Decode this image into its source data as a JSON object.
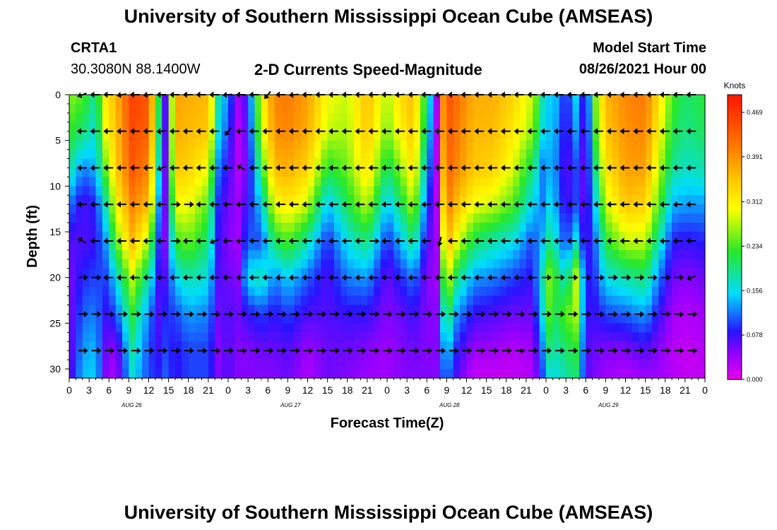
{
  "header": {
    "title": "University of Southern Mississippi Ocean Cube (AMSEAS)",
    "footer_title": "University of Southern Mississippi Ocean Cube (AMSEAS)",
    "station": "CRTA1",
    "coords": "30.3080N  88.1400W",
    "plot_title": "2-D Currents Speed-Magnitude",
    "model_start_label": "Model Start Time",
    "model_start_value": "08/26/2021 Hour 00"
  },
  "colorbar": {
    "unit_label": "Knots",
    "ticks": [
      "0.469",
      "0.391",
      "0.312",
      "0.234",
      "0.156",
      "0.078",
      "0.000"
    ],
    "min": 0.0,
    "max": 0.5
  },
  "chart_data": {
    "type": "heatmap",
    "title": "2-D Currents Speed-Magnitude",
    "xlabel": "Forecast Time(Z)",
    "ylabel": "Depth (ft)",
    "x_tick_labels": [
      "0",
      "3",
      "6",
      "9",
      "12",
      "15",
      "18",
      "21",
      "0",
      "3",
      "6",
      "9",
      "12",
      "15",
      "18",
      "21",
      "0",
      "3",
      "6",
      "9",
      "12",
      "15",
      "18",
      "21",
      "0",
      "3",
      "6",
      "9",
      "12",
      "15",
      "18",
      "21",
      "0"
    ],
    "x_hours": [
      0,
      3,
      6,
      9,
      12,
      15,
      18,
      21,
      24,
      27,
      30,
      33,
      36,
      39,
      42,
      45,
      48,
      51,
      54,
      57,
      60,
      63,
      66,
      69,
      72,
      75,
      78,
      81,
      84,
      87,
      90,
      93,
      96
    ],
    "day_labels": [
      {
        "label": "AUG 26",
        "hour": 9
      },
      {
        "label": "AUG 27",
        "hour": 33
      },
      {
        "label": "AUG 28",
        "hour": 57
      },
      {
        "label": "AUG 29",
        "hour": 81
      }
    ],
    "xlim": [
      0,
      96
    ],
    "y_ticks": [
      0,
      5,
      10,
      15,
      20,
      25,
      30
    ],
    "ylim": [
      0,
      31
    ],
    "colorbar_range": [
      0.0,
      0.5
    ],
    "units": "Knots",
    "time_nodes": [
      0,
      2,
      4,
      5.5,
      7,
      9.5,
      12,
      13.5,
      14.5,
      16,
      18,
      21,
      22.5,
      24,
      25.5,
      27,
      29,
      31,
      33,
      36,
      39,
      42,
      45,
      48,
      50,
      52,
      54,
      55.5,
      56,
      57,
      58.5,
      61,
      64,
      67,
      70,
      71.5,
      72,
      73.5,
      75,
      76.5,
      78,
      79.5,
      81,
      84,
      87,
      89,
      91,
      93,
      96
    ],
    "depth_nodes": [
      0,
      4,
      8,
      12,
      16,
      20,
      24,
      28,
      31
    ],
    "speed_grid": [
      [
        0.26,
        0.23,
        0.19,
        0.12,
        0.07,
        0.05,
        0.05,
        0.05,
        0.06
      ],
      [
        0.24,
        0.2,
        0.12,
        0.07,
        0.07,
        0.09,
        0.11,
        0.13,
        0.14
      ],
      [
        0.18,
        0.16,
        0.14,
        0.09,
        0.08,
        0.1,
        0.12,
        0.14,
        0.15
      ],
      [
        0.32,
        0.3,
        0.25,
        0.18,
        0.13,
        0.1,
        0.08,
        0.06,
        0.05
      ],
      [
        0.36,
        0.35,
        0.34,
        0.3,
        0.24,
        0.15,
        0.1,
        0.04,
        0.03
      ],
      [
        0.46,
        0.45,
        0.44,
        0.4,
        0.36,
        0.28,
        0.22,
        0.18,
        0.16
      ],
      [
        0.44,
        0.43,
        0.4,
        0.36,
        0.27,
        0.18,
        0.12,
        0.1,
        0.1
      ],
      [
        0.22,
        0.2,
        0.17,
        0.13,
        0.1,
        0.08,
        0.07,
        0.08,
        0.09
      ],
      [
        0.07,
        0.07,
        0.06,
        0.06,
        0.05,
        0.07,
        0.09,
        0.1,
        0.11
      ],
      [
        0.38,
        0.37,
        0.35,
        0.3,
        0.23,
        0.15,
        0.1,
        0.08,
        0.08
      ],
      [
        0.37,
        0.36,
        0.34,
        0.3,
        0.25,
        0.18,
        0.13,
        0.1,
        0.1
      ],
      [
        0.36,
        0.35,
        0.3,
        0.24,
        0.2,
        0.16,
        0.12,
        0.1,
        0.1
      ],
      [
        0.18,
        0.16,
        0.12,
        0.09,
        0.08,
        0.07,
        0.06,
        0.05,
        0.05
      ],
      [
        0.12,
        0.1,
        0.08,
        0.06,
        0.05,
        0.06,
        0.07,
        0.07,
        0.07
      ],
      [
        0.04,
        0.03,
        0.03,
        0.04,
        0.04,
        0.05,
        0.06,
        0.05,
        0.05
      ],
      [
        0.08,
        0.07,
        0.06,
        0.08,
        0.11,
        0.16,
        0.08,
        0.05,
        0.05
      ],
      [
        0.3,
        0.28,
        0.22,
        0.15,
        0.1,
        0.18,
        0.1,
        0.06,
        0.05
      ],
      [
        0.4,
        0.39,
        0.36,
        0.3,
        0.21,
        0.12,
        0.08,
        0.06,
        0.05
      ],
      [
        0.41,
        0.4,
        0.37,
        0.32,
        0.24,
        0.15,
        0.1,
        0.07,
        0.06
      ],
      [
        0.38,
        0.37,
        0.34,
        0.28,
        0.18,
        0.11,
        0.07,
        0.04,
        0.03
      ],
      [
        0.3,
        0.28,
        0.22,
        0.14,
        0.09,
        0.07,
        0.07,
        0.06,
        0.06
      ],
      [
        0.28,
        0.27,
        0.25,
        0.21,
        0.16,
        0.12,
        0.08,
        0.06,
        0.05
      ],
      [
        0.36,
        0.35,
        0.33,
        0.28,
        0.2,
        0.13,
        0.08,
        0.05,
        0.04
      ],
      [
        0.27,
        0.25,
        0.2,
        0.14,
        0.09,
        0.06,
        0.05,
        0.04,
        0.04
      ],
      [
        0.33,
        0.31,
        0.26,
        0.2,
        0.14,
        0.09,
        0.06,
        0.05,
        0.05
      ],
      [
        0.36,
        0.35,
        0.33,
        0.28,
        0.2,
        0.12,
        0.08,
        0.06,
        0.05
      ],
      [
        0.2,
        0.18,
        0.14,
        0.1,
        0.07,
        0.05,
        0.05,
        0.05,
        0.05
      ],
      [
        0.04,
        0.03,
        0.03,
        0.03,
        0.04,
        0.04,
        0.05,
        0.05,
        0.05
      ],
      [
        0.34,
        0.33,
        0.3,
        0.26,
        0.22,
        0.16,
        0.12,
        0.1,
        0.09
      ],
      [
        0.45,
        0.44,
        0.43,
        0.41,
        0.37,
        0.3,
        0.22,
        0.15,
        0.12
      ],
      [
        0.42,
        0.41,
        0.4,
        0.36,
        0.3,
        0.2,
        0.13,
        0.09,
        0.07
      ],
      [
        0.37,
        0.36,
        0.35,
        0.3,
        0.21,
        0.13,
        0.08,
        0.04,
        0.02
      ],
      [
        0.37,
        0.36,
        0.34,
        0.28,
        0.18,
        0.12,
        0.07,
        0.04,
        0.02
      ],
      [
        0.34,
        0.32,
        0.29,
        0.24,
        0.16,
        0.1,
        0.06,
        0.03,
        0.02
      ],
      [
        0.28,
        0.26,
        0.2,
        0.15,
        0.1,
        0.08,
        0.06,
        0.04,
        0.03
      ],
      [
        0.18,
        0.16,
        0.12,
        0.12,
        0.14,
        0.18,
        0.16,
        0.12,
        0.1
      ],
      [
        0.15,
        0.15,
        0.14,
        0.16,
        0.2,
        0.27,
        0.25,
        0.2,
        0.16
      ],
      [
        0.14,
        0.13,
        0.12,
        0.13,
        0.16,
        0.22,
        0.21,
        0.18,
        0.16
      ],
      [
        0.08,
        0.07,
        0.06,
        0.07,
        0.09,
        0.16,
        0.24,
        0.2,
        0.18
      ],
      [
        0.15,
        0.13,
        0.1,
        0.1,
        0.16,
        0.28,
        0.27,
        0.22,
        0.2
      ],
      [
        0.06,
        0.05,
        0.05,
        0.05,
        0.06,
        0.08,
        0.08,
        0.07,
        0.07
      ],
      [
        0.26,
        0.24,
        0.2,
        0.16,
        0.12,
        0.1,
        0.08,
        0.06,
        0.05
      ],
      [
        0.36,
        0.35,
        0.32,
        0.28,
        0.22,
        0.16,
        0.1,
        0.05,
        0.04
      ],
      [
        0.4,
        0.39,
        0.38,
        0.35,
        0.28,
        0.18,
        0.11,
        0.05,
        0.03
      ],
      [
        0.41,
        0.4,
        0.38,
        0.34,
        0.28,
        0.2,
        0.13,
        0.07,
        0.04
      ],
      [
        0.33,
        0.31,
        0.28,
        0.24,
        0.18,
        0.12,
        0.08,
        0.05,
        0.04
      ],
      [
        0.24,
        0.22,
        0.19,
        0.14,
        0.09,
        0.06,
        0.04,
        0.03,
        0.03
      ],
      [
        0.2,
        0.19,
        0.17,
        0.13,
        0.08,
        0.05,
        0.03,
        0.02,
        0.02
      ],
      [
        0.22,
        0.21,
        0.18,
        0.13,
        0.09,
        0.06,
        0.04,
        0.03,
        0.02
      ]
    ],
    "vector_depths": [
      0,
      4,
      8,
      12,
      16,
      20,
      24,
      28
    ],
    "vector_times": [
      2,
      4,
      6,
      8,
      10,
      12,
      14,
      16,
      18,
      20,
      22,
      24,
      26,
      28,
      30,
      32,
      34,
      36,
      38,
      40,
      42,
      44,
      46,
      48,
      50,
      52,
      54,
      56,
      58,
      60,
      62,
      64,
      66,
      68,
      70,
      72,
      74,
      76,
      78,
      80,
      82,
      84,
      86,
      88,
      90,
      92,
      94
    ],
    "vector_directions_deg": [
      [
        250,
        270,
        270,
        260,
        270,
        265,
        270,
        270,
        270,
        270,
        270,
        265,
        270,
        270,
        220,
        270,
        265,
        270,
        270,
        270,
        270,
        270,
        270,
        270,
        265,
        270,
        270,
        265,
        270,
        270,
        270,
        270,
        270,
        270,
        270,
        270,
        270,
        270,
        270,
        270,
        270,
        270,
        270,
        270,
        270,
        270,
        270
      ],
      [
        270,
        270,
        270,
        270,
        270,
        270,
        265,
        270,
        270,
        270,
        270,
        215,
        270,
        270,
        270,
        270,
        270,
        270,
        270,
        270,
        270,
        270,
        270,
        270,
        270,
        270,
        270,
        270,
        270,
        270,
        270,
        270,
        270,
        270,
        270,
        270,
        270,
        270,
        270,
        270,
        270,
        270,
        270,
        270,
        270,
        270,
        270
      ],
      [
        270,
        270,
        270,
        270,
        270,
        270,
        250,
        270,
        270,
        270,
        270,
        270,
        300,
        270,
        270,
        270,
        270,
        270,
        270,
        270,
        270,
        270,
        270,
        270,
        270,
        270,
        270,
        270,
        270,
        270,
        270,
        270,
        270,
        270,
        270,
        270,
        270,
        270,
        270,
        270,
        270,
        270,
        270,
        270,
        270,
        270,
        270
      ],
      [
        270,
        270,
        270,
        270,
        270,
        270,
        270,
        90,
        90,
        270,
        270,
        270,
        270,
        270,
        270,
        270,
        270,
        270,
        270,
        270,
        270,
        270,
        270,
        270,
        270,
        270,
        270,
        270,
        270,
        270,
        270,
        270,
        270,
        270,
        270,
        270,
        270,
        270,
        270,
        270,
        270,
        270,
        270,
        270,
        270,
        270,
        270
      ],
      [
        300,
        270,
        270,
        270,
        270,
        270,
        270,
        90,
        270,
        270,
        250,
        270,
        270,
        270,
        270,
        270,
        270,
        270,
        270,
        270,
        270,
        270,
        90,
        270,
        270,
        270,
        270,
        195,
        270,
        270,
        270,
        270,
        270,
        270,
        270,
        270,
        270,
        270,
        270,
        270,
        270,
        270,
        270,
        270,
        270,
        270,
        270
      ],
      [
        90,
        90,
        270,
        270,
        270,
        270,
        270,
        270,
        270,
        270,
        270,
        270,
        270,
        270,
        270,
        270,
        270,
        270,
        270,
        270,
        270,
        270,
        270,
        270,
        270,
        270,
        270,
        270,
        270,
        270,
        270,
        270,
        270,
        270,
        270,
        90,
        90,
        90,
        90,
        90,
        90,
        90,
        90,
        90,
        90,
        90,
        250
      ],
      [
        90,
        90,
        90,
        90,
        90,
        90,
        90,
        90,
        90,
        90,
        90,
        90,
        90,
        90,
        90,
        90,
        90,
        90,
        90,
        90,
        90,
        90,
        90,
        90,
        90,
        90,
        90,
        90,
        90,
        90,
        90,
        90,
        90,
        90,
        90,
        90,
        90,
        90,
        90,
        90,
        90,
        90,
        90,
        90,
        90,
        90,
        90
      ],
      [
        90,
        90,
        90,
        90,
        90,
        90,
        90,
        90,
        90,
        90,
        90,
        90,
        90,
        90,
        90,
        90,
        90,
        90,
        90,
        90,
        90,
        90,
        90,
        90,
        90,
        90,
        90,
        90,
        90,
        90,
        90,
        90,
        90,
        90,
        90,
        90,
        90,
        90,
        90,
        90,
        90,
        90,
        90,
        90,
        90,
        90,
        90
      ]
    ]
  }
}
